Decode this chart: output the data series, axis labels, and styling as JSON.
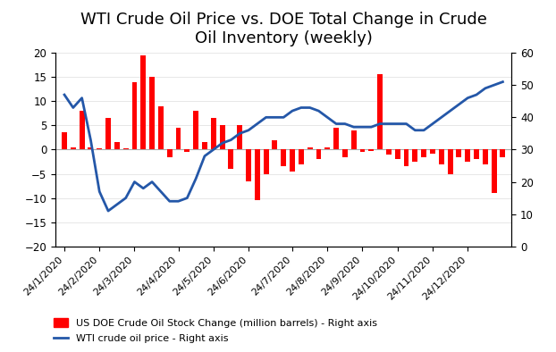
{
  "title": "WTI Crude Oil Price vs. DOE Total Change in Crude\nOil Inventory (weekly)",
  "bar_label": "US DOE Crude Oil Stock Change (million barrels) - Right axis",
  "line_label": "WTI crude oil price - Right axis",
  "bar_color": "#FF0000",
  "line_color": "#2457A8",
  "x_labels": [
    "24/1/2020",
    "24/2/2020",
    "24/3/2020",
    "24/4/2020",
    "24/5/2020",
    "24/6/2020",
    "24/7/2020",
    "24/8/2020",
    "24/9/2020",
    "24/10/2020",
    "24/11/2020",
    "24/12/2020"
  ],
  "bar_values": [
    3.5,
    0.5,
    8.0,
    0.5,
    0.3,
    6.5,
    1.5,
    0.3,
    14.0,
    19.5,
    15.0,
    9.0,
    -1.5,
    4.5,
    -0.5,
    8.0,
    1.5,
    6.5,
    5.0,
    -4.0,
    5.0,
    -6.5,
    -10.5,
    -5.0,
    2.0,
    -3.5,
    -4.5,
    -3.0,
    0.5,
    -2.0,
    0.5,
    4.5,
    -1.5,
    4.0,
    -0.5,
    -0.3,
    15.5,
    -1.0,
    -2.0,
    -3.5,
    -2.5,
    -1.5,
    -0.8,
    -3.0,
    -5.0,
    -1.5,
    -2.5,
    -2.0,
    -3.0,
    -9.0,
    -1.5
  ],
  "line_values": [
    47,
    43,
    46,
    33,
    17,
    11,
    13,
    15,
    20,
    18,
    20,
    17,
    14,
    14,
    15,
    21,
    28,
    30,
    32,
    33,
    35,
    36,
    38,
    40,
    40,
    40,
    42,
    43,
    43,
    42,
    40,
    38,
    38,
    37,
    37,
    37,
    38,
    38,
    38,
    38,
    36,
    36,
    38,
    40,
    42,
    44,
    46,
    47,
    49,
    50,
    51
  ],
  "left_ylim": [
    -20,
    20
  ],
  "right_ylim": [
    0,
    60
  ],
  "left_yticks": [
    -20,
    -15,
    -10,
    -5,
    0,
    5,
    10,
    15,
    20
  ],
  "right_yticks": [
    0,
    10,
    20,
    30,
    40,
    50,
    60
  ],
  "background_color": "#FFFFFF",
  "title_fontsize": 13,
  "tick_fontsize": 8.5
}
